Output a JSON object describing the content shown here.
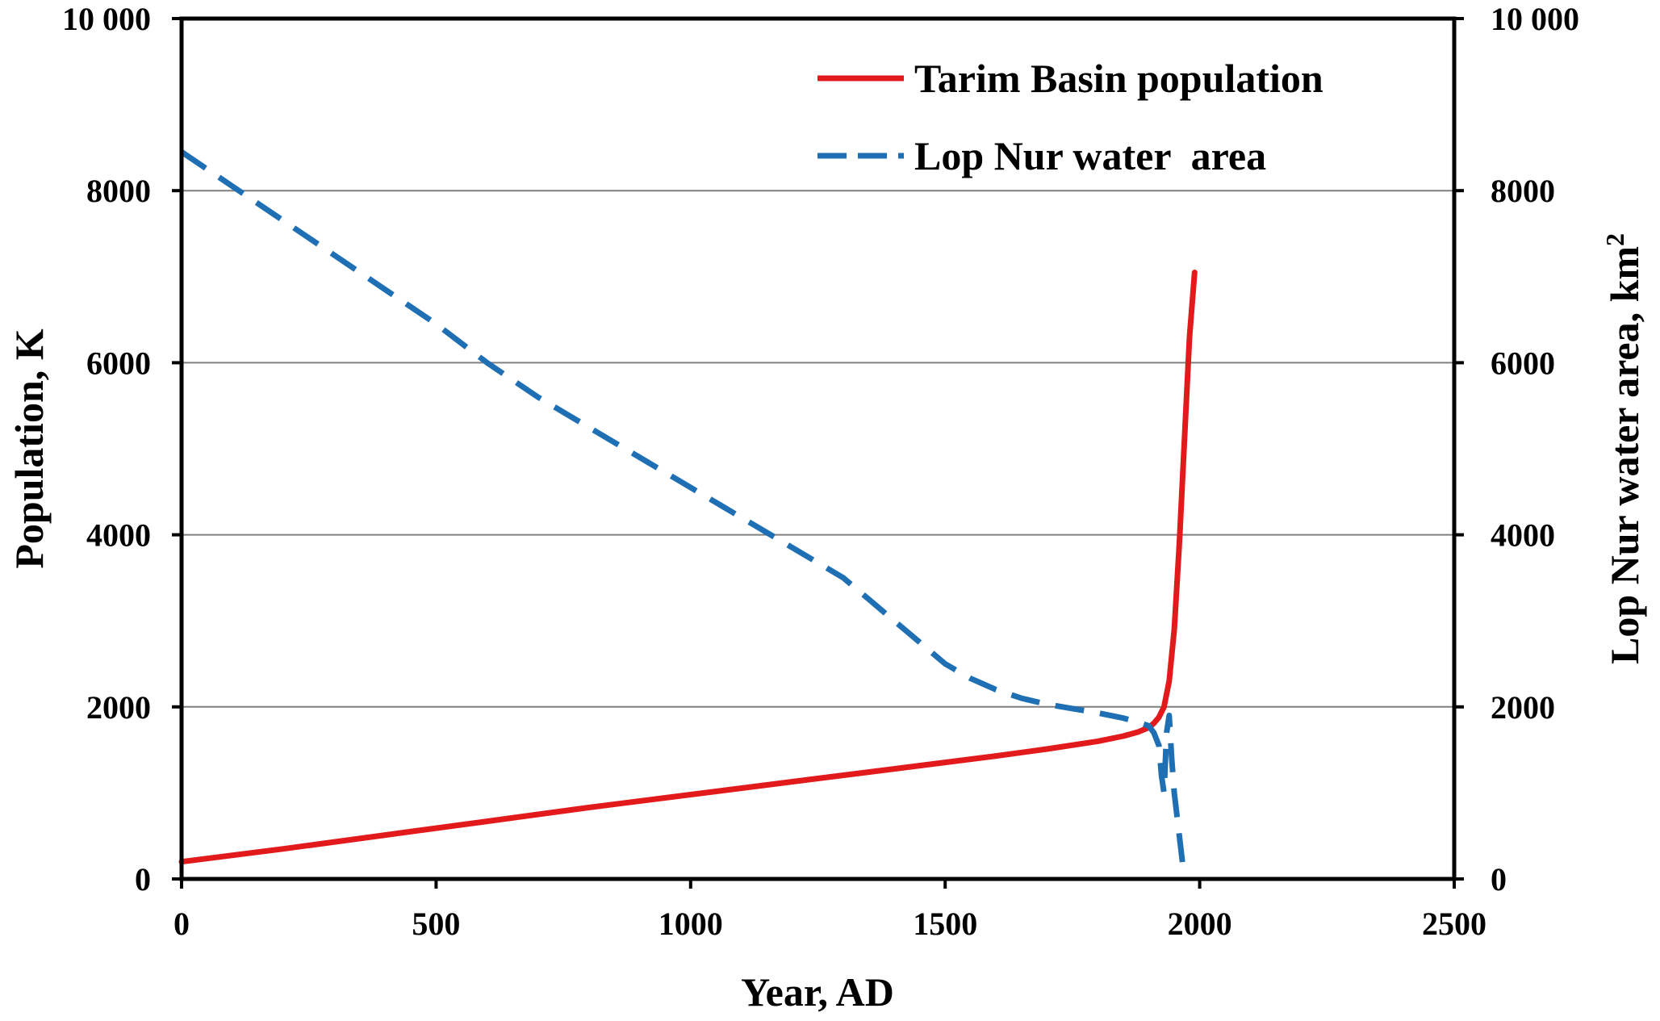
{
  "chart_data": {
    "type": "line",
    "title": "",
    "xlabel": "Year, AD",
    "ylabel": "Population, K",
    "y2label": "Lop Nur water  area, km",
    "y2label_superscript": "2",
    "xlim": [
      0,
      2500
    ],
    "ylim": [
      0,
      10000
    ],
    "y2lim": [
      0,
      10000
    ],
    "x_ticks": [
      0,
      500,
      1000,
      1500,
      2000,
      2500
    ],
    "x_tick_labels": [
      "0",
      "500",
      "1000",
      "1500",
      "2000",
      "2500"
    ],
    "y_ticks": [
      0,
      2000,
      4000,
      6000,
      8000,
      10000
    ],
    "y_tick_labels": [
      "0",
      "2000",
      "4000",
      "6000",
      "8000",
      "10 000"
    ],
    "y2_ticks": [
      0,
      2000,
      4000,
      6000,
      8000,
      10000
    ],
    "y2_tick_labels": [
      "0",
      "2000",
      "4000",
      "6000",
      "8000",
      "10 000"
    ],
    "grid": "horizontal",
    "legend_position": "top-right",
    "series": [
      {
        "name": "Tarim Basin population",
        "axis": "left",
        "style": "solid",
        "color": "#e31a1c",
        "x": [
          0,
          200,
          400,
          600,
          800,
          1000,
          1200,
          1400,
          1600,
          1700,
          1800,
          1850,
          1880,
          1900,
          1910,
          1920,
          1930,
          1940,
          1950,
          1960,
          1970,
          1980,
          1990
        ],
        "y": [
          200,
          350,
          510,
          670,
          830,
          980,
          1130,
          1280,
          1430,
          1510,
          1600,
          1660,
          1710,
          1760,
          1810,
          1880,
          2000,
          2300,
          2900,
          3900,
          5100,
          6300,
          7050
        ]
      },
      {
        "name": "Lop Nur water  area",
        "axis": "right",
        "style": "dashed",
        "color": "#1f6fb4",
        "x": [
          0,
          100,
          200,
          300,
          400,
          500,
          600,
          700,
          800,
          900,
          1000,
          1100,
          1200,
          1300,
          1350,
          1400,
          1450,
          1500,
          1550,
          1600,
          1650,
          1700,
          1750,
          1800,
          1850,
          1880,
          1900,
          1910,
          1920,
          1925,
          1930,
          1935,
          1940,
          1945,
          1950,
          1960,
          1970
        ],
        "y": [
          8450,
          8050,
          7650,
          7250,
          6850,
          6450,
          6000,
          5600,
          5250,
          4900,
          4550,
          4200,
          3850,
          3500,
          3250,
          3000,
          2750,
          2500,
          2330,
          2200,
          2100,
          2030,
          1980,
          1930,
          1870,
          1820,
          1780,
          1700,
          1550,
          1200,
          1000,
          1700,
          1900,
          1400,
          1000,
          500,
          0
        ]
      }
    ]
  },
  "colors": {
    "population": "#e31a1c",
    "water": "#1f6fb4",
    "grid": "#808080",
    "axis": "#000000"
  }
}
